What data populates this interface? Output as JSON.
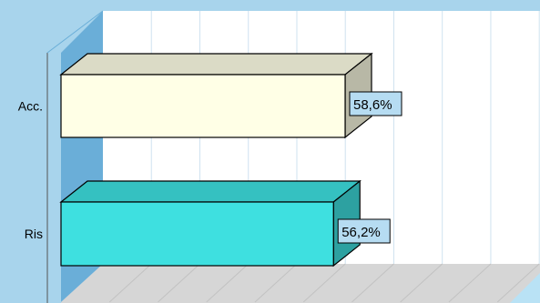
{
  "chart_data": {
    "type": "bar",
    "orientation": "horizontal",
    "three_d": true,
    "categories": [
      "Acc.",
      "Ris"
    ],
    "values": [
      58.6,
      56.2
    ],
    "value_labels": [
      "58,6%",
      "56,2%"
    ],
    "bar_colors": [
      "#ffffe6",
      "#3ee0e0"
    ],
    "title": "",
    "xlabel": "",
    "ylabel": "",
    "grid": true,
    "legend": "none"
  },
  "colors": {
    "background": "#a8d4ec",
    "back_wall": "#ffffff",
    "side_wall": "#6aaed8",
    "floor": "#d6d6d6",
    "label_box": "#b6dcf2"
  }
}
